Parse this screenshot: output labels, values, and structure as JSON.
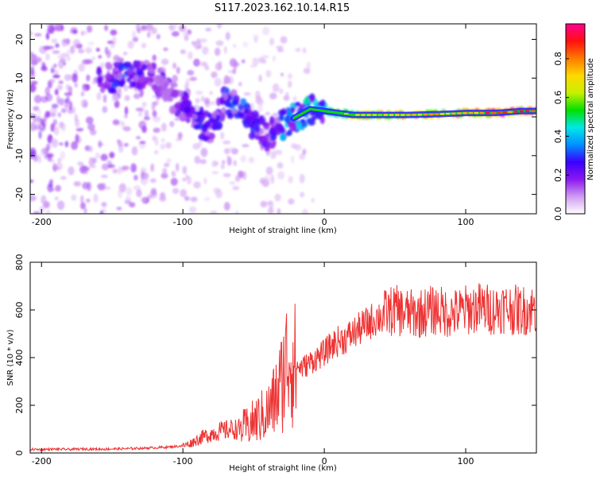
{
  "title": "S117.2023.162.10.14.R15",
  "chart_data": [
    {
      "type": "heatmap",
      "title": "S117.2023.162.10.14.R15",
      "xlabel": "Height of straight line (km)",
      "ylabel": "Frequency (Hz)",
      "xlim": [
        -208,
        150
      ],
      "ylim": [
        -25,
        24
      ],
      "xticks": [
        -200,
        -100,
        0,
        100
      ],
      "yticks": [
        -20,
        -10,
        0,
        10,
        20
      ],
      "colorbar": {
        "label": "Normalized spectral amplitude",
        "range": [
          0.0,
          0.98
        ],
        "ticks": [
          "0.0",
          "0.2",
          "0.4",
          "0.6",
          "0.8"
        ],
        "tick_values": [
          0.0,
          0.2,
          0.4,
          0.6,
          0.8
        ],
        "colors": [
          "#ffffff",
          "#cf9bf2",
          "#8a17f0",
          "#3a00ff",
          "#0090ff",
          "#00e8e8",
          "#00e000",
          "#c8f000",
          "#ffd800",
          "#ff7a00",
          "#ff1010",
          "#ff0090"
        ]
      },
      "ridge": [
        {
          "x": -150,
          "y": 10,
          "v": 0.28
        },
        {
          "x": -140,
          "y": 11,
          "v": 0.4
        },
        {
          "x": -130,
          "y": 11,
          "v": 0.3
        },
        {
          "x": -120,
          "y": 10,
          "v": 0.25
        },
        {
          "x": -110,
          "y": 6,
          "v": 0.2
        },
        {
          "x": -100,
          "y": 3,
          "v": 0.28
        },
        {
          "x": -90,
          "y": -1,
          "v": 0.35
        },
        {
          "x": -80,
          "y": -3,
          "v": 0.3
        },
        {
          "x": -70,
          "y": 4,
          "v": 0.35
        },
        {
          "x": -60,
          "y": 2,
          "v": 0.4
        },
        {
          "x": -50,
          "y": -2,
          "v": 0.35
        },
        {
          "x": -40,
          "y": -5,
          "v": 0.3
        },
        {
          "x": -30,
          "y": -2,
          "v": 0.45
        },
        {
          "x": -20,
          "y": 0,
          "v": 0.45
        },
        {
          "x": -10,
          "y": 2,
          "v": 0.5
        },
        {
          "x": 0,
          "y": 1.5,
          "v": 0.5
        },
        {
          "x": 20,
          "y": 0.5,
          "v": 0.7
        },
        {
          "x": 40,
          "y": 0.5,
          "v": 0.75
        },
        {
          "x": 60,
          "y": 0.5,
          "v": 0.8
        },
        {
          "x": 80,
          "y": 0.7,
          "v": 0.85
        },
        {
          "x": 100,
          "y": 1,
          "v": 0.9
        },
        {
          "x": 120,
          "y": 1,
          "v": 0.95
        },
        {
          "x": 140,
          "y": 1.5,
          "v": 0.98
        }
      ]
    },
    {
      "type": "line",
      "title": "",
      "xlabel": "Height of straight line (km)",
      "ylabel": "SNR (10 * v/v)",
      "xlim": [
        -208,
        150
      ],
      "ylim": [
        0,
        800
      ],
      "xticks": [
        -200,
        -100,
        0,
        100
      ],
      "yticks": [
        0,
        200,
        400,
        600,
        800
      ],
      "line_color": "#ee3333",
      "series": [
        {
          "name": "SNR",
          "x": [
            -208,
            -200,
            -190,
            -180,
            -170,
            -160,
            -150,
            -140,
            -130,
            -120,
            -110,
            -100,
            -95,
            -90,
            -85,
            -80,
            -75,
            -70,
            -65,
            -60,
            -55,
            -50,
            -45,
            -40,
            -35,
            -30,
            -28,
            -25,
            -22,
            -20,
            -15,
            -10,
            -5,
            0,
            5,
            10,
            15,
            20,
            25,
            30,
            35,
            40,
            45,
            50,
            55,
            60,
            65,
            70,
            75,
            80,
            85,
            90,
            95,
            100,
            105,
            110,
            115,
            120,
            125,
            130,
            135,
            140,
            145,
            150
          ],
          "values": [
            15,
            15,
            16,
            15,
            17,
            16,
            17,
            18,
            20,
            22,
            25,
            30,
            40,
            55,
            70,
            80,
            90,
            95,
            100,
            100,
            110,
            130,
            150,
            170,
            220,
            300,
            350,
            420,
            380,
            360,
            360,
            380,
            400,
            420,
            450,
            470,
            480,
            500,
            520,
            540,
            560,
            575,
            590,
            600,
            590,
            585,
            580,
            590,
            595,
            600,
            590,
            585,
            590,
            600,
            605,
            610,
            605,
            600,
            610,
            605,
            600,
            598,
            602,
            605
          ]
        }
      ]
    }
  ]
}
